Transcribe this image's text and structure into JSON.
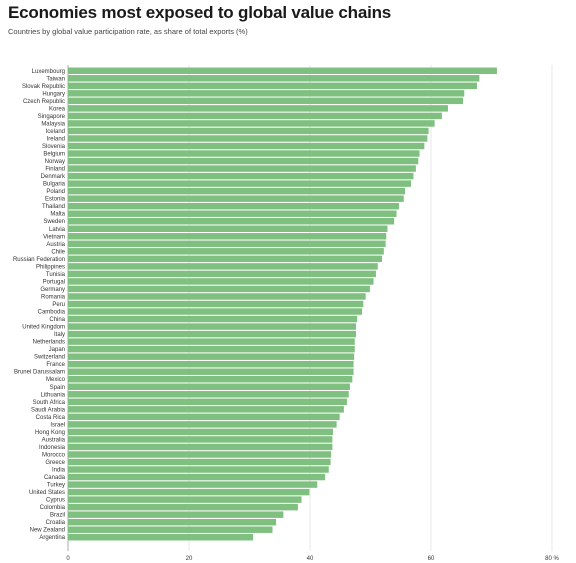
{
  "title": "Economies most exposed to global value chains",
  "subtitle": "Countries by global value participation rate, as share of total exports (%)",
  "chart_data": {
    "type": "bar",
    "orientation": "horizontal",
    "bar_color": "#7fbf7f",
    "grid": true,
    "xlim": [
      0,
      80
    ],
    "x_ticks": [
      {
        "value": 0,
        "label": "0"
      },
      {
        "value": 20,
        "label": "20"
      },
      {
        "value": 40,
        "label": "40"
      },
      {
        "value": 60,
        "label": "60"
      },
      {
        "value": 80,
        "label": "80 %"
      }
    ],
    "categories": [
      "Luxembourg",
      "Taiwan",
      "Slovak Republic",
      "Hungary",
      "Czech Republic",
      "Korea",
      "Singapore",
      "Malaysia",
      "Iceland",
      "Ireland",
      "Slovenia",
      "Belgium",
      "Norway",
      "Finland",
      "Denmark",
      "Bulgaria",
      "Poland",
      "Estonia",
      "Thailand",
      "Malta",
      "Sweden",
      "Latvia",
      "Vietnam",
      "Austria",
      "Chile",
      "Russian Federation",
      "Philippines",
      "Tunisia",
      "Portugal",
      "Germany",
      "Romania",
      "Peru",
      "Cambodia",
      "China",
      "United Kingdom",
      "Italy",
      "Netherlands",
      "Japan",
      "Switzerland",
      "France",
      "Brunei Darussalam",
      "Mexico",
      "Spain",
      "Lithuania",
      "South Africa",
      "Saudi Arabia",
      "Costa Rica",
      "Israel",
      "Hong Kong",
      "Australia",
      "Indonesia",
      "Morocco",
      "Greece",
      "India",
      "Canada",
      "Turkey",
      "United States",
      "Cyprus",
      "Colombia",
      "Brazil",
      "Croatia",
      "New Zealand",
      "Argentina"
    ],
    "values": [
      70.9,
      68.0,
      67.6,
      65.5,
      65.3,
      62.8,
      61.8,
      60.6,
      59.6,
      59.4,
      58.9,
      58.1,
      57.9,
      57.5,
      57.1,
      56.7,
      55.7,
      55.5,
      54.7,
      54.3,
      53.9,
      52.8,
      52.6,
      52.5,
      52.2,
      51.9,
      51.2,
      50.9,
      50.5,
      49.9,
      49.2,
      48.8,
      48.6,
      47.8,
      47.6,
      47.6,
      47.4,
      47.4,
      47.3,
      47.2,
      47.2,
      47.0,
      46.6,
      46.4,
      46.1,
      45.6,
      44.9,
      44.4,
      43.8,
      43.7,
      43.7,
      43.5,
      43.4,
      43.1,
      42.5,
      41.2,
      39.9,
      38.6,
      38.0,
      35.6,
      34.4,
      33.8,
      30.6
    ]
  }
}
